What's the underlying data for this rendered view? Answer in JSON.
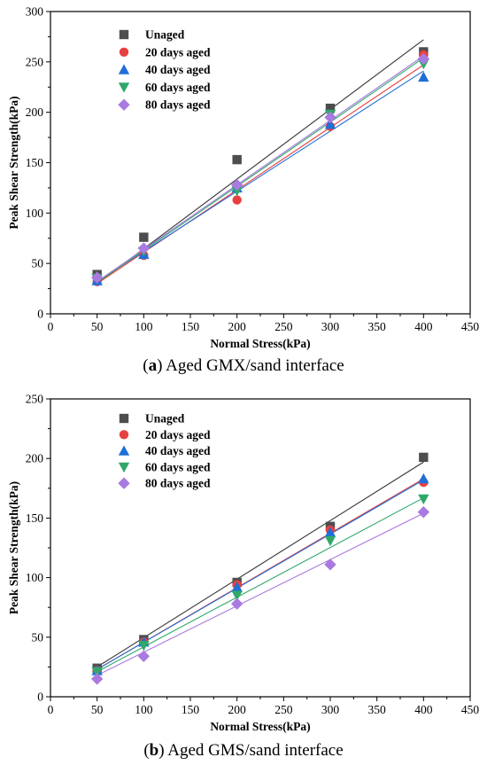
{
  "chart_data": [
    {
      "type": "scatter",
      "panel": "a",
      "caption_letter": "a",
      "caption_text": "Aged GMX/sand interface",
      "xlabel": "Normal Stress(kPa)",
      "ylabel": "Peak Shear Strength(kPa)",
      "xlim": [
        0,
        450
      ],
      "ylim": [
        0,
        300
      ],
      "xticks": [
        0,
        50,
        100,
        150,
        200,
        250,
        300,
        350,
        400,
        450
      ],
      "yticks": [
        0,
        50,
        100,
        150,
        200,
        250,
        300
      ],
      "legend_position": "top-left",
      "grid": false,
      "x": [
        50,
        100,
        200,
        300,
        400
      ],
      "series": [
        {
          "name": "Unaged",
          "marker": "square",
          "color": "#4d4d4d",
          "line_color": "#333333",
          "values": [
            39,
            76,
            153,
            204,
            260
          ],
          "fit": [
            [
              50,
              30
            ],
            [
              400,
              272
            ]
          ]
        },
        {
          "name": "20 days aged",
          "marker": "circle",
          "color": "#e84040",
          "line_color": "#e84040",
          "values": [
            32,
            58,
            113,
            186,
            257
          ],
          "fit": [
            [
              50,
              30
            ],
            [
              400,
              247
            ]
          ]
        },
        {
          "name": "40 days aged",
          "marker": "triangle-up",
          "color": "#1f6fd8",
          "line_color": "#1f6fd8",
          "values": [
            33,
            59,
            125,
            188,
            235
          ],
          "fit": [
            [
              50,
              32
            ],
            [
              400,
              241
            ]
          ]
        },
        {
          "name": "60 days aged",
          "marker": "triangle-down",
          "color": "#2fa86a",
          "line_color": "#2fa86a",
          "values": [
            35,
            62,
            122,
            198,
            248
          ],
          "fit": [
            [
              50,
              31
            ],
            [
              400,
              254
            ]
          ]
        },
        {
          "name": "80 days aged",
          "marker": "diamond",
          "color": "#a97ae0",
          "line_color": "#a97ae0",
          "values": [
            36,
            65,
            128,
            195,
            253
          ],
          "fit": [
            [
              50,
              32
            ],
            [
              400,
              256
            ]
          ]
        }
      ]
    },
    {
      "type": "scatter",
      "panel": "b",
      "caption_letter": "b",
      "caption_text": "Aged GMS/sand interface",
      "xlabel": "Normal Stress(kPa)",
      "ylabel": "Peak Shear Strength(kPa)",
      "xlim": [
        0,
        450
      ],
      "ylim": [
        0,
        250
      ],
      "xticks": [
        0,
        50,
        100,
        150,
        200,
        250,
        300,
        350,
        400,
        450
      ],
      "yticks": [
        0,
        50,
        100,
        150,
        200,
        250
      ],
      "legend_position": "top-left",
      "grid": false,
      "x": [
        50,
        100,
        200,
        300,
        400
      ],
      "series": [
        {
          "name": "Unaged",
          "marker": "square",
          "color": "#4d4d4d",
          "line_color": "#333333",
          "values": [
            24,
            48,
            96,
            143,
            201
          ],
          "fit": [
            [
              50,
              25
            ],
            [
              400,
              197
            ]
          ]
        },
        {
          "name": "20 days aged",
          "marker": "circle",
          "color": "#e84040",
          "line_color": "#e84040",
          "values": [
            22,
            46,
            94,
            140,
            180
          ],
          "fit": [
            [
              50,
              23
            ],
            [
              400,
              183
            ]
          ]
        },
        {
          "name": "40 days aged",
          "marker": "triangle-up",
          "color": "#1f6fd8",
          "line_color": "#1f6fd8",
          "values": [
            22,
            46,
            92,
            138,
            183
          ],
          "fit": [
            [
              50,
              23
            ],
            [
              400,
              182
            ]
          ]
        },
        {
          "name": "60 days aged",
          "marker": "triangle-down",
          "color": "#2fa86a",
          "line_color": "#2fa86a",
          "values": [
            21,
            43,
            85,
            131,
            166
          ],
          "fit": [
            [
              50,
              21
            ],
            [
              400,
              167
            ]
          ]
        },
        {
          "name": "80 days aged",
          "marker": "diamond",
          "color": "#a97ae0",
          "line_color": "#a97ae0",
          "values": [
            15,
            34,
            78,
            111,
            155
          ],
          "fit": [
            [
              50,
              18
            ],
            [
              400,
              154
            ]
          ]
        }
      ]
    }
  ]
}
